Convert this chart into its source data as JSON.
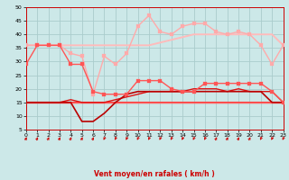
{
  "xlabel": "Vent moyen/en rafales ( km/h )",
  "xlim": [
    0,
    23
  ],
  "ylim": [
    5,
    50
  ],
  "yticks": [
    5,
    10,
    15,
    20,
    25,
    30,
    35,
    40,
    45,
    50
  ],
  "xticks": [
    0,
    1,
    2,
    3,
    4,
    5,
    6,
    7,
    8,
    9,
    10,
    11,
    12,
    13,
    14,
    15,
    16,
    17,
    18,
    19,
    20,
    21,
    22,
    23
  ],
  "bg_color": "#cce8e8",
  "grid_color": "#aacccc",
  "lines": [
    {
      "y": [
        36,
        36,
        36,
        36,
        36,
        36,
        36,
        36,
        36,
        36,
        36,
        36,
        37,
        38,
        39,
        40,
        40,
        40,
        40,
        40,
        40,
        40,
        40,
        36
      ],
      "color": "#ffbbbb",
      "lw": 1.4,
      "marker": null,
      "ms": 0,
      "zorder": 2
    },
    {
      "y": [
        36,
        36,
        36,
        36,
        33,
        32,
        18,
        32,
        29,
        33,
        43,
        47,
        41,
        40,
        43,
        44,
        44,
        41,
        40,
        41,
        40,
        36,
        29,
        36
      ],
      "color": "#ffaaaa",
      "lw": 1.0,
      "marker": "s",
      "ms": 2.2,
      "zorder": 3
    },
    {
      "y": [
        15,
        15,
        15,
        15,
        15,
        15,
        15,
        15,
        15,
        15,
        15,
        15,
        15,
        15,
        15,
        15,
        15,
        15,
        15,
        15,
        15,
        15,
        15,
        15
      ],
      "color": "#ff3333",
      "lw": 1.5,
      "marker": null,
      "ms": 0,
      "zorder": 4
    },
    {
      "y": [
        15,
        15,
        15,
        15,
        15,
        15,
        15,
        15,
        15,
        15,
        15,
        15,
        15,
        15,
        15,
        15,
        15,
        15,
        15,
        15,
        15,
        15,
        15,
        15
      ],
      "color": "#ff6666",
      "lw": 1.0,
      "marker": null,
      "ms": 0,
      "zorder": 5
    },
    {
      "y": [
        15,
        15,
        15,
        15,
        16,
        15,
        15,
        15,
        16,
        17,
        18,
        19,
        19,
        19,
        19,
        20,
        20,
        20,
        19,
        20,
        19,
        19,
        19,
        15
      ],
      "color": "#dd1111",
      "lw": 1.0,
      "marker": null,
      "ms": 0,
      "zorder": 6
    },
    {
      "y": [
        15,
        15,
        15,
        15,
        15,
        8,
        8,
        11,
        15,
        18,
        19,
        19,
        19,
        19,
        19,
        19,
        19,
        19,
        19,
        19,
        19,
        19,
        15,
        15
      ],
      "color": "#bb0000",
      "lw": 1.2,
      "marker": null,
      "ms": 0,
      "zorder": 7
    },
    {
      "y": [
        29,
        36,
        36,
        36,
        29,
        29,
        19,
        18,
        18,
        18,
        23,
        23,
        23,
        20,
        19,
        19,
        22,
        22,
        22,
        22,
        22,
        22,
        19,
        15
      ],
      "color": "#ff5555",
      "lw": 1.0,
      "marker": "s",
      "ms": 2.2,
      "zorder": 8
    }
  ],
  "arrows": [
    45,
    45,
    45,
    45,
    45,
    45,
    45,
    225,
    225,
    225,
    225,
    225,
    225,
    225,
    225,
    225,
    225,
    45,
    45,
    45,
    45,
    225,
    225,
    225
  ]
}
